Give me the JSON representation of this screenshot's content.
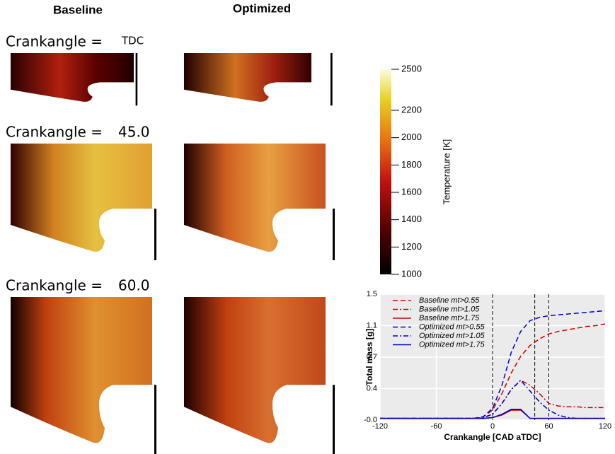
{
  "headers": [
    "Baseline",
    "Optimized"
  ],
  "rows": [
    {
      "label": "Crankangle =",
      "value": "TDC"
    },
    {
      "label": "Crankangle =",
      "value": "45.0"
    },
    {
      "label": "Crankangle =",
      "value": "60.0"
    }
  ],
  "colorbar": {
    "label": "Temperature [K]",
    "lim": [
      1000,
      2500
    ],
    "ticks": [
      1000,
      1200,
      1400,
      1600,
      1800,
      2000,
      2200,
      2500
    ]
  },
  "chart_data": {
    "type": "line",
    "xlabel": "Crankangle [CAD aTDC]",
    "ylabel": "Total mass [g]",
    "x": [
      -120,
      -110,
      -100,
      -90,
      -80,
      -70,
      -60,
      -50,
      -40,
      -30,
      -20,
      -10,
      0,
      10,
      20,
      30,
      40,
      50,
      60,
      70,
      80,
      90,
      100,
      110,
      120
    ],
    "series": [
      {
        "name": "Baseline mt>0.55",
        "color": "#cc0000",
        "dash": "dashed",
        "values": [
          0,
          0,
          0,
          0,
          0,
          0,
          0,
          0,
          0,
          0,
          0,
          0.02,
          0.1,
          0.3,
          0.55,
          0.75,
          0.88,
          0.96,
          1.02,
          1.05,
          1.07,
          1.09,
          1.11,
          1.12,
          1.14
        ]
      },
      {
        "name": "Baseline mt>1.05",
        "color": "#cc0000",
        "dash": "dashdot",
        "values": [
          0,
          0,
          0,
          0,
          0,
          0,
          0,
          0,
          0,
          0,
          0,
          0.01,
          0.05,
          0.18,
          0.35,
          0.46,
          0.4,
          0.3,
          0.18,
          0.15,
          0.14,
          0.14,
          0.13,
          0.13,
          0.13
        ]
      },
      {
        "name": "Baseline mt>1.75",
        "color": "#cc0000",
        "dash": "solid",
        "values": [
          0,
          0,
          0,
          0,
          0,
          0,
          0,
          0,
          0,
          0,
          0,
          0,
          0.01,
          0.04,
          0.1,
          0.1,
          0,
          0,
          0,
          0,
          0,
          0,
          0,
          0,
          0
        ]
      },
      {
        "name": "Optimized mt>0.55",
        "color": "#0000cc",
        "dash": "dashed",
        "values": [
          0,
          0,
          0,
          0,
          0,
          0,
          0,
          0,
          0,
          0,
          0,
          0.02,
          0.12,
          0.4,
          0.8,
          1.05,
          1.18,
          1.22,
          1.24,
          1.25,
          1.26,
          1.27,
          1.28,
          1.29,
          1.3
        ]
      },
      {
        "name": "Optimized mt>1.05",
        "color": "#0000cc",
        "dash": "dashdot",
        "values": [
          0,
          0,
          0,
          0,
          0,
          0,
          0,
          0,
          0,
          0,
          0,
          0.01,
          0.05,
          0.18,
          0.35,
          0.46,
          0.33,
          0.2,
          0.1,
          0.04,
          0.01,
          0,
          0,
          0,
          0
        ]
      },
      {
        "name": "Optimized mt>1.75",
        "color": "#0000cc",
        "dash": "solid",
        "values": [
          0,
          0,
          0,
          0,
          0,
          0,
          0,
          0,
          0,
          0,
          0,
          0,
          0.01,
          0.05,
          0.11,
          0.11,
          0,
          0,
          0,
          0,
          0,
          0,
          0,
          0,
          0
        ]
      }
    ],
    "xlim": [
      -120,
      120
    ],
    "xticks": [
      -120,
      -60,
      0,
      60,
      120
    ],
    "ylim": [
      -0.02,
      1.5
    ],
    "yticks": [
      {
        "value": -0.02,
        "label": "-0.0"
      },
      {
        "value": 0.36,
        "label": "0.4"
      },
      {
        "value": 0.74,
        "label": "0.7"
      },
      {
        "value": 1.12,
        "label": "1.1"
      },
      1.5
    ],
    "vlines": [
      0,
      45,
      60
    ],
    "grid": true,
    "legend": "upper left"
  }
}
